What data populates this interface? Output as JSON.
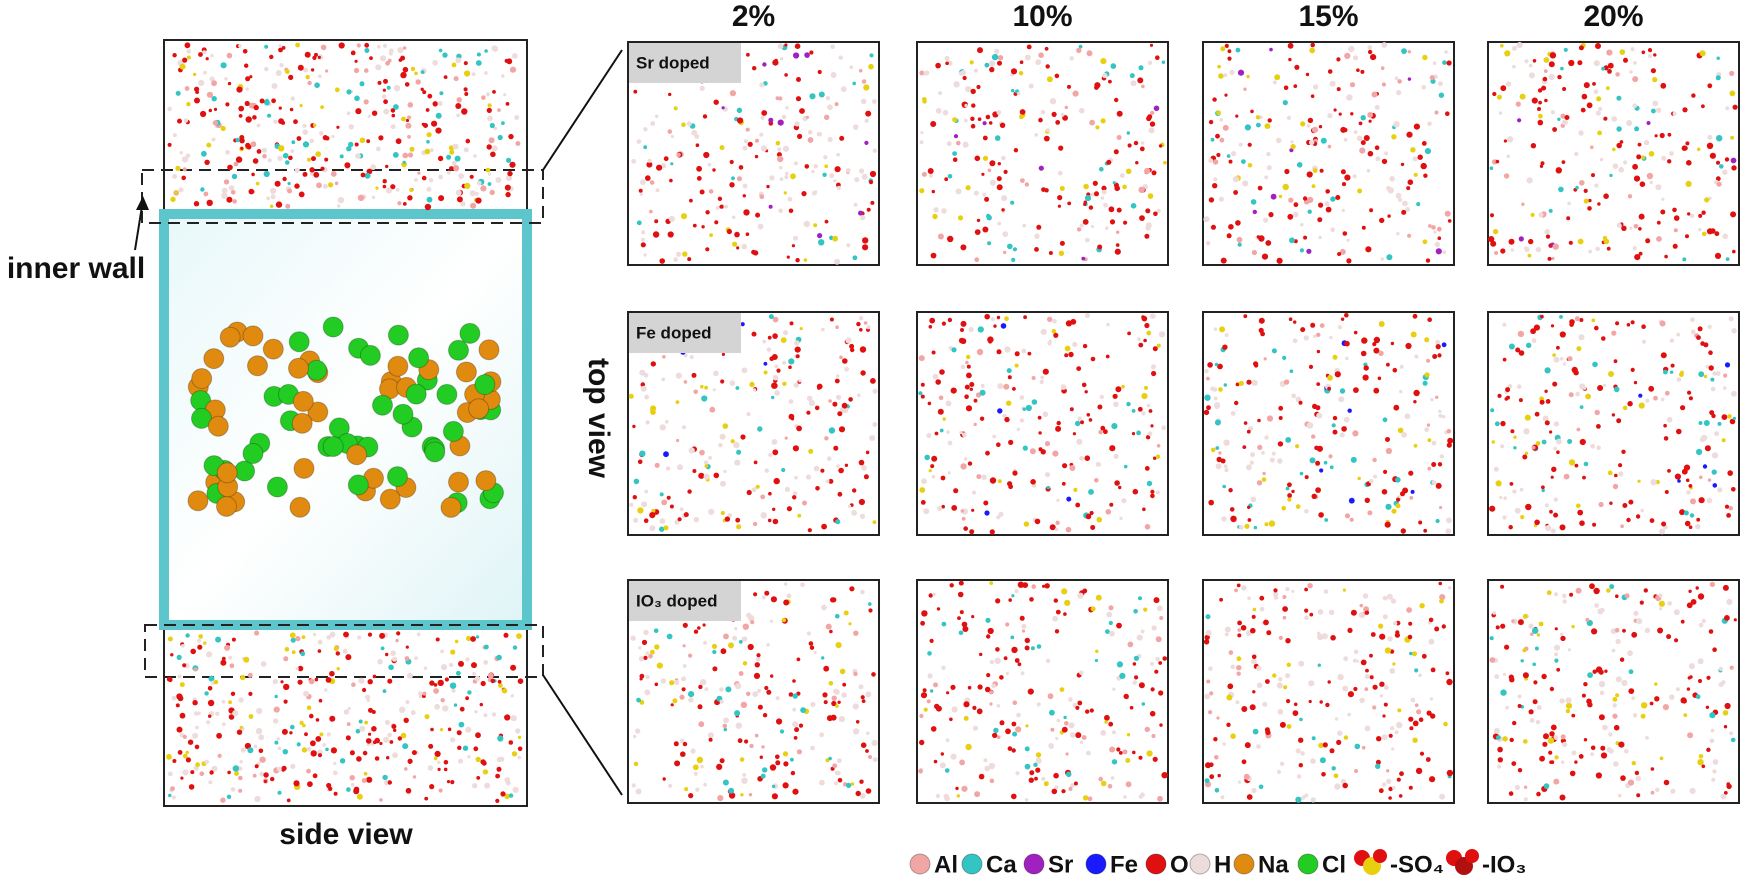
{
  "column_headers": [
    "2%",
    "10%",
    "15%",
    "20%"
  ],
  "row_labels": [
    "Sr doped",
    "Fe doped",
    "IO₃ doped"
  ],
  "inner_wall_label": "inner wall",
  "top_view_label": "top view",
  "side_view_label": "side view",
  "legend": [
    {
      "label": "Al",
      "color": "#f2a5a5"
    },
    {
      "label": "Ca",
      "color": "#33c4c4"
    },
    {
      "label": "Sr",
      "color": "#a020c0"
    },
    {
      "label": "Fe",
      "color": "#1a1aff"
    },
    {
      "label": "O",
      "color": "#e01010"
    },
    {
      "label": "H",
      "color": "#eedcdc"
    },
    {
      "label": "Na",
      "color": "#e08a10"
    },
    {
      "label": "Cl",
      "color": "#22cc22"
    },
    {
      "label": "-SO₄",
      "color": "#e8d010"
    },
    {
      "label": "-IO₃",
      "color": "#b01010"
    }
  ]
}
